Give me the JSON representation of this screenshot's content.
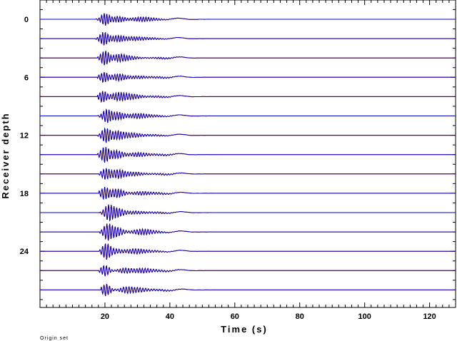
{
  "chart_data": {
    "type": "line",
    "title": "",
    "xlabel": "Time (s)",
    "ylabel": "Receiver depth",
    "xlim": [
      0,
      128
    ],
    "ylim": [
      30,
      -1.5
    ],
    "x_ticks": [
      20,
      40,
      60,
      80,
      100,
      120
    ],
    "y_ticks": [
      0,
      6,
      12,
      18,
      24
    ],
    "x_minor_step": 2,
    "y_minor_step": 1,
    "traces": {
      "depths": [
        0,
        2,
        4,
        6,
        8,
        10,
        12,
        14,
        16,
        18,
        20,
        22,
        24,
        26,
        28
      ],
      "onset_time": 17,
      "packet_end_time": 45,
      "series": [
        {
          "color": "#0000cc",
          "style": "synthetic"
        },
        {
          "color": "#ff0000",
          "style": "observed"
        }
      ]
    },
    "footnote": "Origin set"
  }
}
